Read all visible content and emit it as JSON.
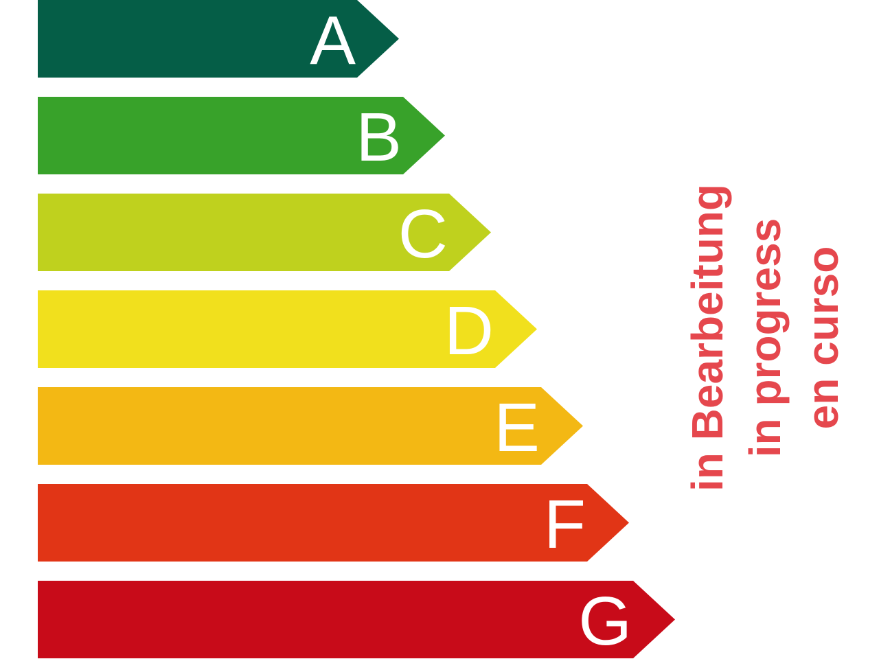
{
  "classes": [
    {
      "label": "A",
      "color": "#055e47"
    },
    {
      "label": "B",
      "color": "#38a22a"
    },
    {
      "label": "C",
      "color": "#bfd11e"
    },
    {
      "label": "D",
      "color": "#f1e01d"
    },
    {
      "label": "E",
      "color": "#f3b814"
    },
    {
      "label": "F",
      "color": "#e13516"
    },
    {
      "label": "G",
      "color": "#c80b19"
    }
  ],
  "status": {
    "color": "#e5474d",
    "lines": [
      "in Bearbeitung",
      "in progress",
      "en curso"
    ]
  }
}
